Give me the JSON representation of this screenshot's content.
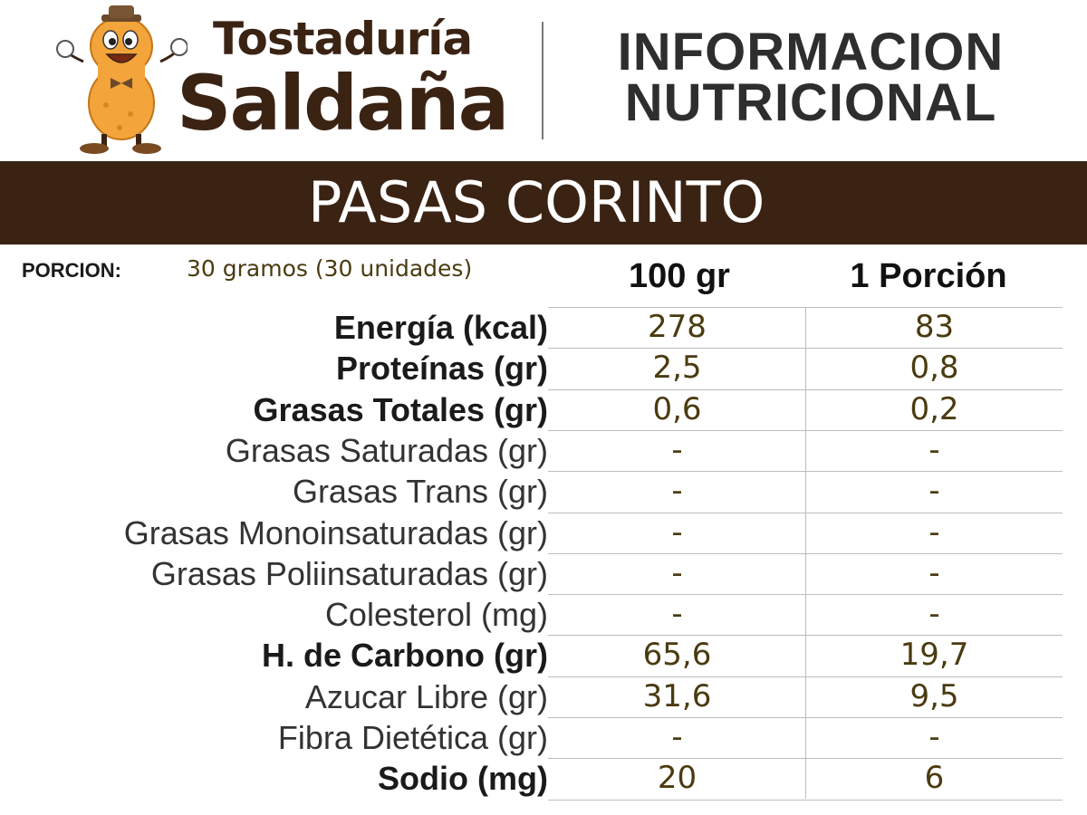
{
  "brand": {
    "line1": "Tostaduría",
    "line2": "Saldaña"
  },
  "header": {
    "title_line1": "INFORMACION",
    "title_line2": "NUTRICIONAL"
  },
  "product": {
    "name": "PASAS CORINTO"
  },
  "portion": {
    "label": "PORCION:",
    "value": "30 gramos (30 unidades)"
  },
  "columns": {
    "per100": "100 gr",
    "perPortion": "1 Porción"
  },
  "rows": [
    {
      "label": "Energía (kcal)",
      "per100": "278",
      "perPortion": "83",
      "bold": true
    },
    {
      "label": "Proteínas (gr)",
      "per100": "2,5",
      "perPortion": "0,8",
      "bold": true
    },
    {
      "label": "Grasas Totales (gr)",
      "per100": "0,6",
      "perPortion": "0,2",
      "bold": true
    },
    {
      "label": "Grasas Saturadas (gr)",
      "per100": "-",
      "perPortion": "-",
      "bold": false
    },
    {
      "label": "Grasas Trans (gr)",
      "per100": "-",
      "perPortion": "-",
      "bold": false
    },
    {
      "label": "Grasas Monoinsaturadas (gr)",
      "per100": "-",
      "perPortion": "-",
      "bold": false
    },
    {
      "label": "Grasas Poliinsaturadas (gr)",
      "per100": "-",
      "perPortion": "-",
      "bold": false
    },
    {
      "label": "Colesterol (mg)",
      "per100": "-",
      "perPortion": "-",
      "bold": false
    },
    {
      "label": "H. de Carbono (gr)",
      "per100": "65,6",
      "perPortion": "19,7",
      "bold": true
    },
    {
      "label": "Azucar Libre (gr)",
      "per100": "31,6",
      "perPortion": "9,5",
      "bold": false
    },
    {
      "label": "Fibra Dietética (gr)",
      "per100": "-",
      "perPortion": "-",
      "bold": false
    },
    {
      "label": "Sodio (mg)",
      "per100": "20",
      "perPortion": "6",
      "bold": true
    }
  ],
  "colors": {
    "brown": "#3b2314",
    "value_text": "#4a3b10",
    "peanut": "#f3a43a"
  }
}
